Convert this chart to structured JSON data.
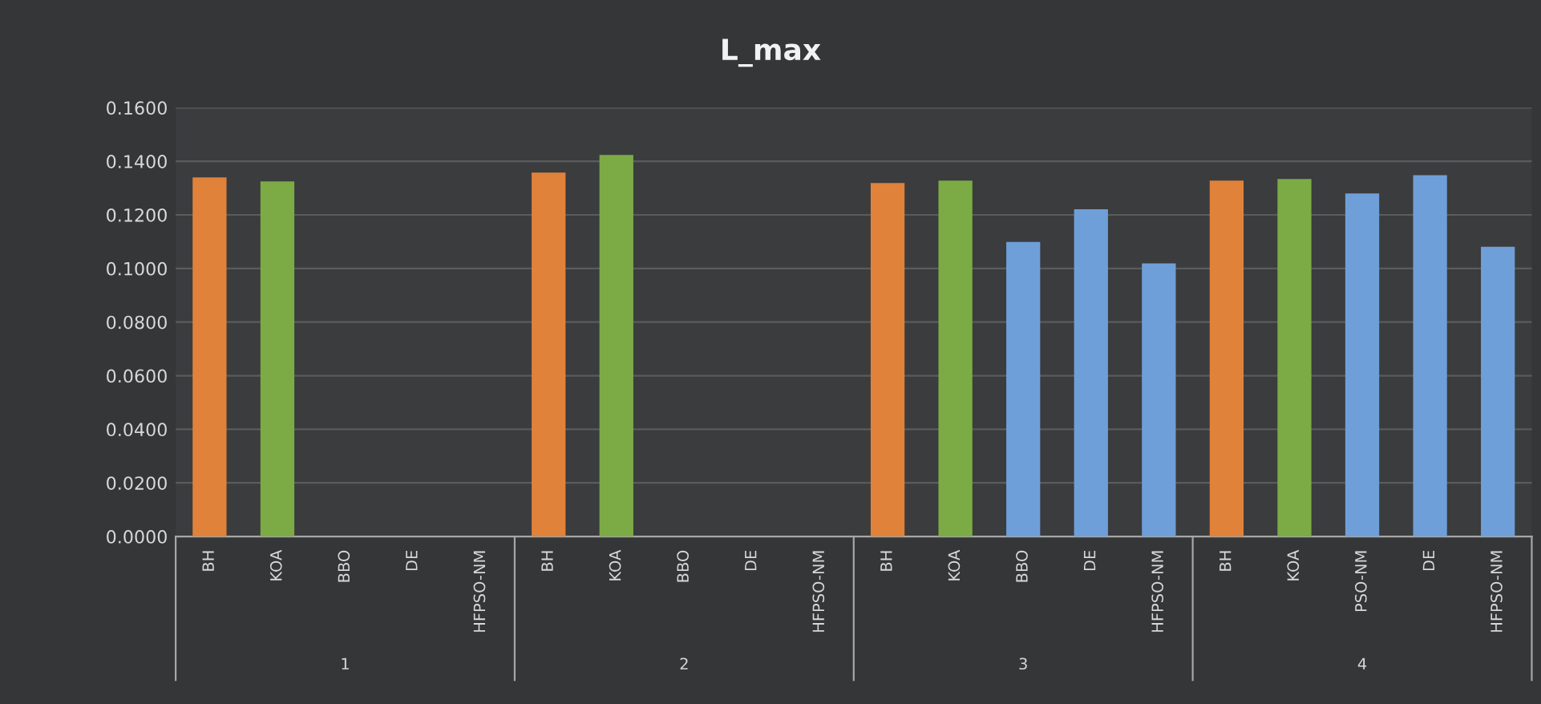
{
  "chart_data": {
    "type": "bar",
    "title": "L_max",
    "categories": [
      "BH",
      "KOA",
      "BBO",
      "DE",
      "HFPSO-NM",
      "BH",
      "KOA",
      "BBO",
      "DE",
      "HFPSO-NM",
      "BH",
      "KOA",
      "BBO",
      "DE",
      "HFPSO-NM",
      "BH",
      "KOA",
      "PSO-NM",
      "DE",
      "HFPSO-NM"
    ],
    "values": [
      0.134,
      0.1325,
      null,
      null,
      null,
      0.1358,
      0.1424,
      null,
      null,
      null,
      0.1319,
      0.1328,
      0.1099,
      0.1221,
      0.1019,
      0.1328,
      0.1334,
      0.128,
      0.1348,
      0.1081
    ],
    "colors": [
      "#e0823a",
      "#7cab45",
      "#6f9fd8",
      "#6f9fd8",
      "#6f9fd8",
      "#e0823a",
      "#7cab45",
      "#6f9fd8",
      "#6f9fd8",
      "#6f9fd8",
      "#e0823a",
      "#7cab45",
      "#6f9fd8",
      "#6f9fd8",
      "#6f9fd8",
      "#e0823a",
      "#7cab45",
      "#6f9fd8",
      "#6f9fd8",
      "#6f9fd8"
    ],
    "annotations": [
      "1",
      "2",
      "3",
      "4"
    ],
    "ylim": [
      0,
      0.16
    ],
    "yticks": [
      {
        "value": 0,
        "label": "0.0000"
      },
      {
        "value": 0.02,
        "label": "0.0200"
      },
      {
        "value": 0.04,
        "label": "0.0400"
      },
      {
        "value": 0.06,
        "label": "0.0600"
      },
      {
        "value": 0.08,
        "label": "0.0800"
      },
      {
        "value": 0.1,
        "label": "0.1000"
      },
      {
        "value": 0.12,
        "label": "0.1200"
      },
      {
        "value": 0.14,
        "label": "0.1400"
      },
      {
        "value": 0.16,
        "label": "0.1600"
      }
    ],
    "grid": "y",
    "legend": false
  }
}
